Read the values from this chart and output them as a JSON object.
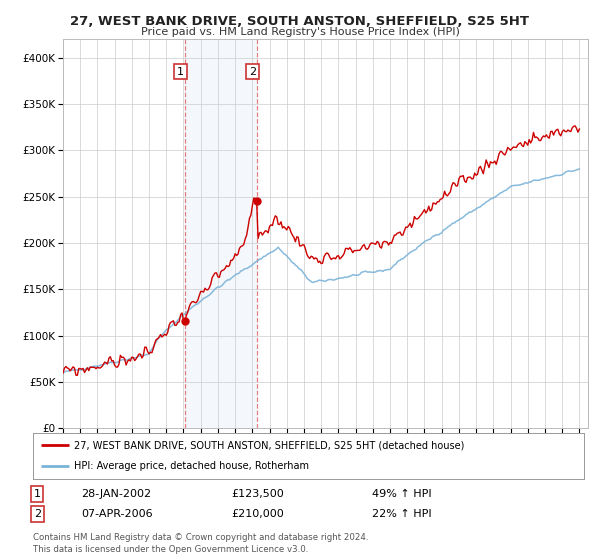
{
  "title": "27, WEST BANK DRIVE, SOUTH ANSTON, SHEFFIELD, S25 5HT",
  "subtitle": "Price paid vs. HM Land Registry's House Price Index (HPI)",
  "hpi_color": "#7ab3d8",
  "price_color": "#cc0000",
  "marker_color": "#cc0000",
  "bg_color": "#ffffff",
  "grid_color": "#cccccc",
  "sale1_date": "28-JAN-2002",
  "sale1_price": 123500,
  "sale1_hpi_pct": "49%",
  "sale2_date": "07-APR-2006",
  "sale2_price": 210000,
  "sale2_hpi_pct": "22%",
  "legend_line1": "27, WEST BANK DRIVE, SOUTH ANSTON, SHEFFIELD, S25 5HT (detached house)",
  "legend_line2": "HPI: Average price, detached house, Rotherham",
  "footnote": "Contains HM Land Registry data © Crown copyright and database right 2024.\nThis data is licensed under the Open Government Licence v3.0.",
  "ylim": [
    0,
    420000
  ],
  "yticks": [
    0,
    50000,
    100000,
    150000,
    200000,
    250000,
    300000,
    350000,
    400000
  ],
  "sale1_x": 2002.07,
  "sale2_x": 2006.27,
  "span1_x0": 2002.07,
  "span1_x1": 2006.27,
  "xmin": 1995.0,
  "xmax": 2025.5
}
